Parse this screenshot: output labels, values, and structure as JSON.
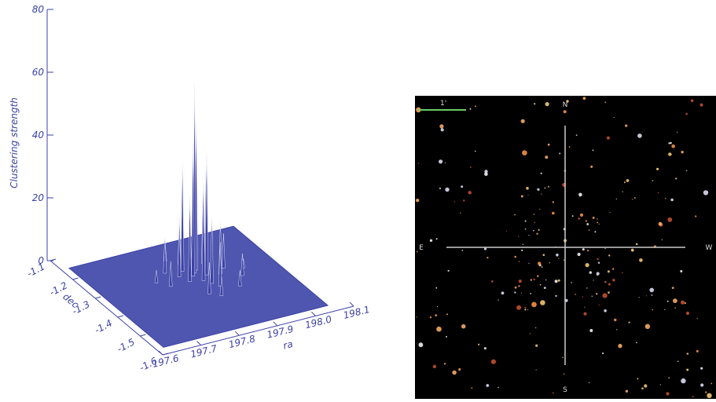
{
  "chart_data": {
    "type": "surface3d",
    "zlabel": "Clustering strength",
    "xlabel": "ra",
    "ylabel": "dec",
    "zlim": [
      0,
      80
    ],
    "zticks": [
      0,
      20,
      40,
      60,
      80
    ],
    "xlim": [
      197.6,
      198.1
    ],
    "xticks": [
      197.6,
      197.7,
      197.8,
      197.9,
      {
        "value": 198.0,
        "label": "198.0"
      },
      198.1
    ],
    "ylim": [
      -1.6,
      -1.1
    ],
    "yticks": [
      -1.1,
      -1.2,
      -1.3,
      -1.4,
      -1.5,
      -1.6
    ],
    "color": "#3c42a6",
    "spikes": {
      "x": [
        197.86,
        197.87,
        197.85,
        197.88,
        197.84,
        197.89,
        197.86,
        197.83,
        197.9,
        197.87,
        197.82,
        197.91,
        197.85,
        197.88,
        197.8,
        197.93,
        197.84,
        197.89,
        197.78,
        197.95,
        197.86,
        197.83,
        197.92,
        197.76,
        197.97
      ],
      "y": [
        -1.3,
        -1.29,
        -1.31,
        -1.32,
        -1.28,
        -1.3,
        -1.34,
        -1.33,
        -1.27,
        -1.36,
        -1.3,
        -1.33,
        -1.25,
        -1.38,
        -1.27,
        -1.31,
        -1.4,
        -1.24,
        -1.33,
        -1.36,
        -1.42,
        -1.22,
        -1.4,
        -1.3,
        -1.33
      ],
      "z": [
        62,
        50,
        44,
        40,
        36,
        34,
        30,
        28,
        26,
        22,
        18,
        17,
        16,
        14,
        12,
        11,
        10,
        9,
        8,
        7,
        6,
        6,
        5,
        4,
        3
      ]
    }
  },
  "sky_image": {
    "scale_label": "1'",
    "north": "N",
    "south": "S",
    "east": "E",
    "west": "W"
  }
}
